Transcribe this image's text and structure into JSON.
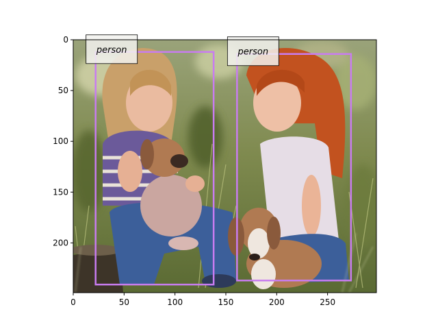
{
  "image": {
    "description_tags": [
      "two-girls",
      "puppies",
      "grass",
      "outdoor"
    ],
    "palette": {
      "sky_bokeh": "#8f9b6a",
      "grass_dark": "#4b5a2c",
      "grass_light": "#a7b06b",
      "skin": "#e9b59a",
      "hair_blonde": "#c9a06a",
      "hair_red": "#c2521f",
      "jeans": "#3c5f9a",
      "top_white": "#e6dde6",
      "stripe_purple": "#6b5a9a",
      "puppy_tan": "#b07a52",
      "puppy_pink": "#caa6a0",
      "puppy_white": "#efe7df",
      "stump": "#3d3428"
    }
  },
  "axes": {
    "x_range": [
      0,
      298
    ],
    "y_range": [
      249,
      0
    ],
    "x_ticks": [
      0,
      50,
      100,
      150,
      200,
      250
    ],
    "y_ticks": [
      0,
      50,
      100,
      150,
      200
    ]
  },
  "detections": [
    {
      "label": "person",
      "x0": 22,
      "y0": 12,
      "x1": 138,
      "y1": 241,
      "color": "#c87cf0"
    },
    {
      "label": "person",
      "x0": 161,
      "y0": 14,
      "x1": 273,
      "y1": 237,
      "color": "#c87cf0"
    }
  ]
}
